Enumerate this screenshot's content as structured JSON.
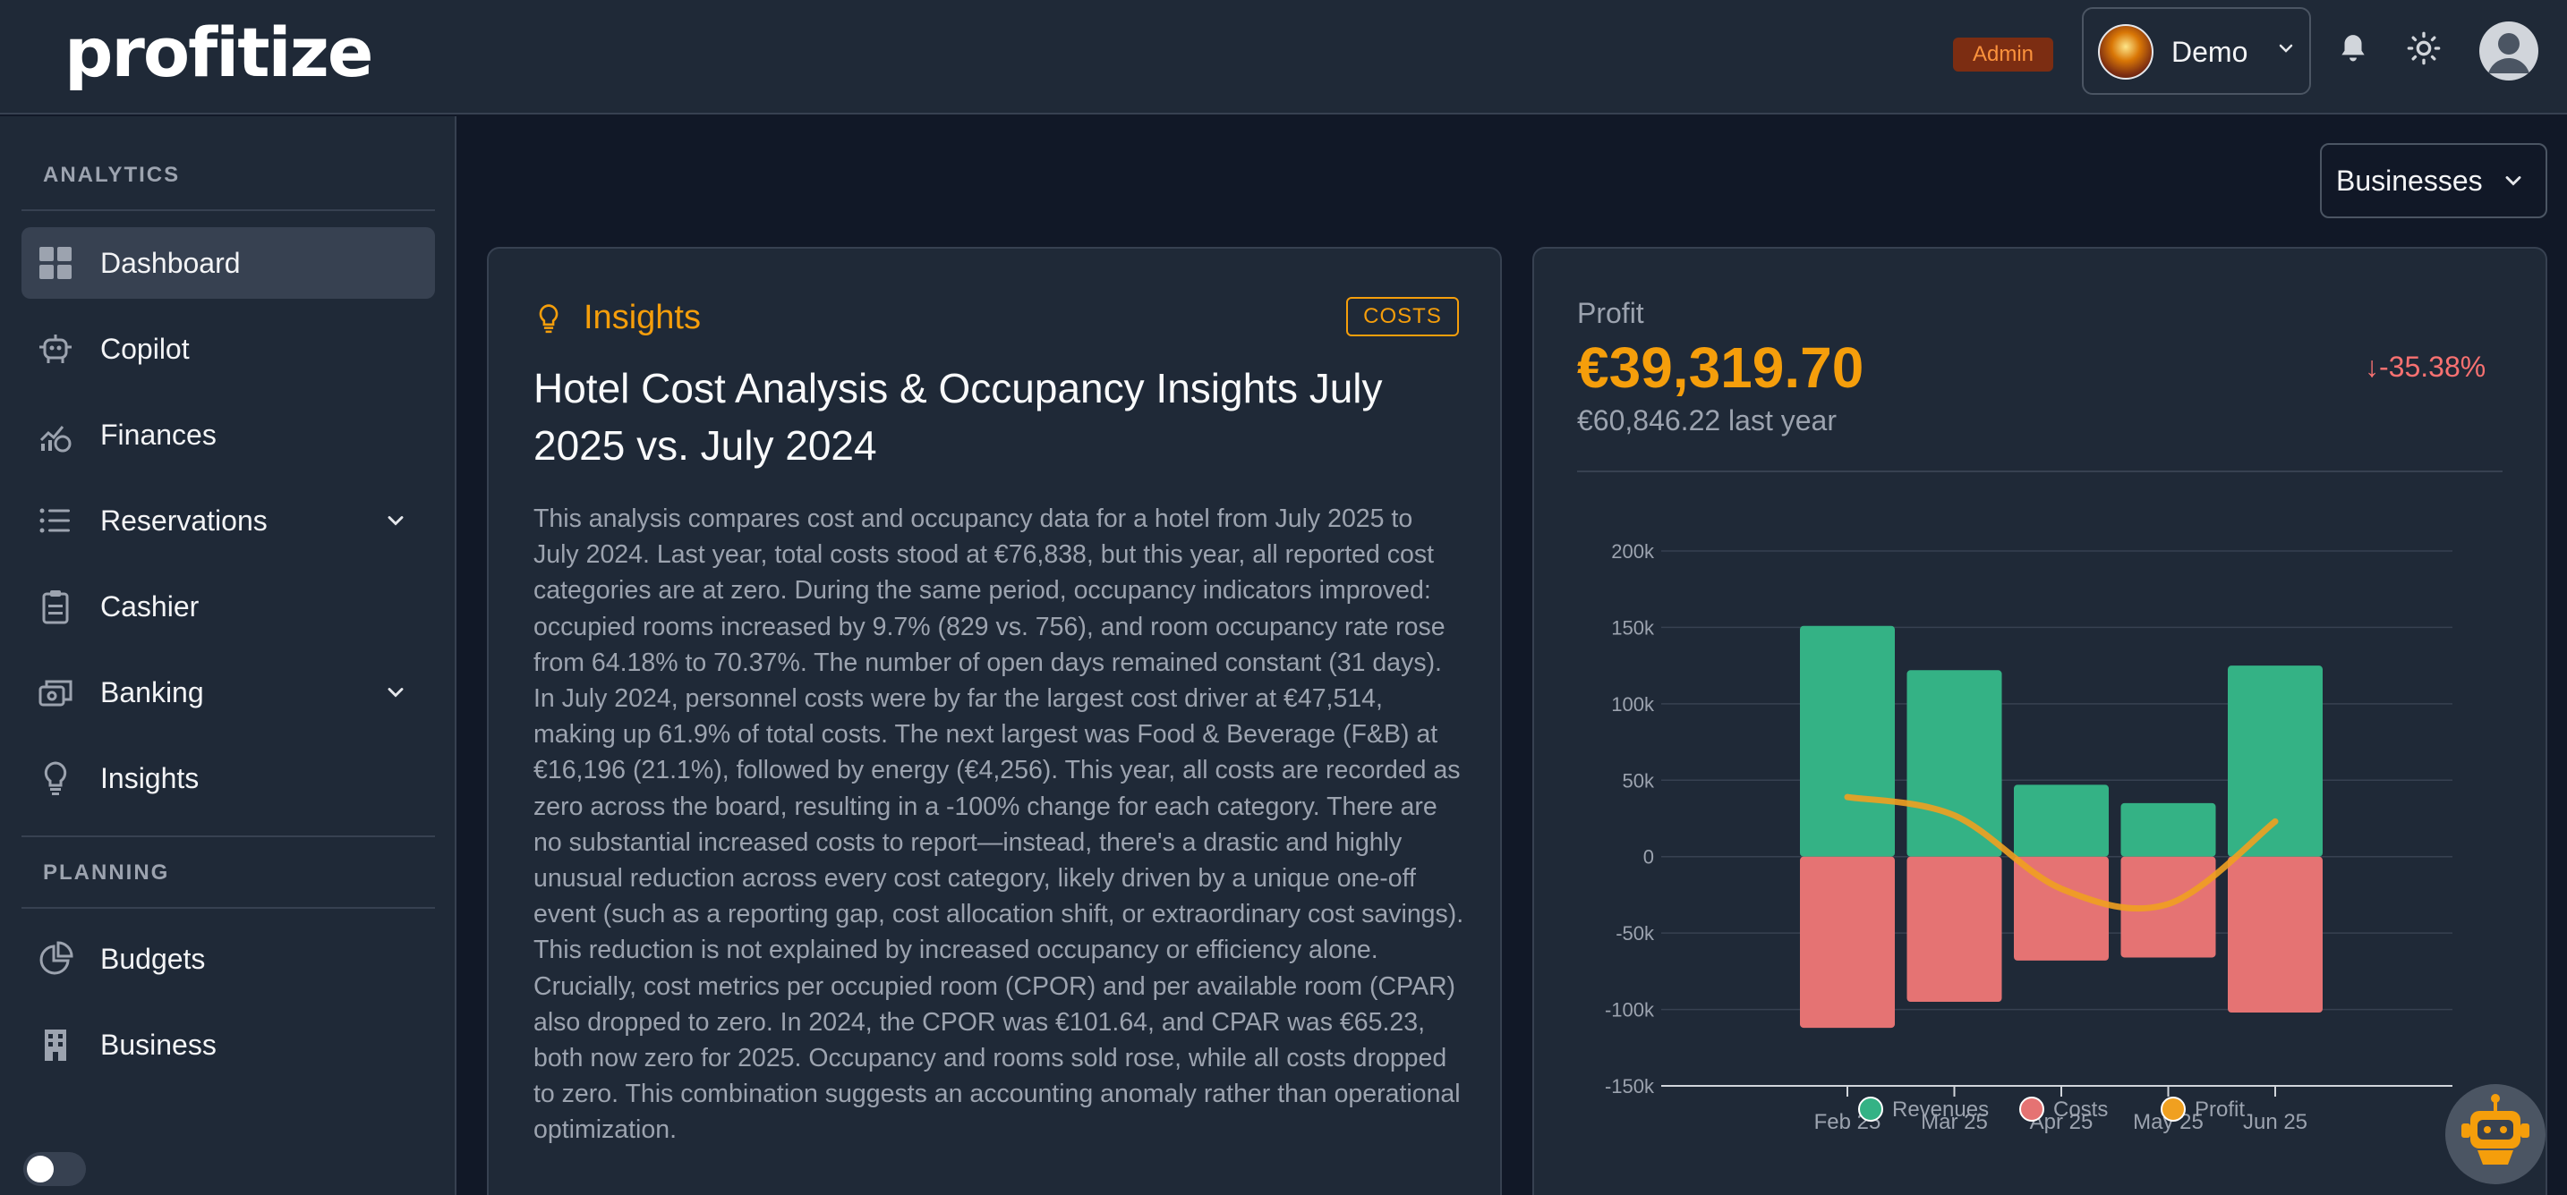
{
  "header": {
    "logo": "profitize",
    "admin_badge": "Admin",
    "account": "Demo",
    "icons": [
      "bell-icon",
      "sun-icon",
      "user-avatar-icon"
    ]
  },
  "sidebar": {
    "analytics_title": "ANALYTICS",
    "planning_title": "PLANNING",
    "items": [
      {
        "label": "Dashboard",
        "icon": "dashboard-icon"
      },
      {
        "label": "Copilot",
        "icon": "robot-icon"
      },
      {
        "label": "Finances",
        "icon": "finances-icon"
      },
      {
        "label": "Reservations",
        "icon": "list-icon"
      },
      {
        "label": "Cashier",
        "icon": "clipboard-icon"
      },
      {
        "label": "Banking",
        "icon": "banking-icon"
      },
      {
        "label": "Insights",
        "icon": "lightbulb-icon"
      },
      {
        "label": "Budgets",
        "icon": "pie-chart-icon"
      },
      {
        "label": "Business",
        "icon": "building-icon"
      }
    ]
  },
  "main": {
    "business_select": "Businesses"
  },
  "insights": {
    "heading": "Insights",
    "tag": "COSTS",
    "title": "Hotel Cost Analysis & Occupancy Insights July 2025 vs. July 2024",
    "body": "This analysis compares cost and occupancy data for a hotel from July 2025 to July 2024. Last year, total costs stood at €76,838, but this year, all reported cost categories are at zero. During the same period, occupancy indicators improved: occupied rooms increased by 9.7% (829 vs. 756), and room occupancy rate rose from 64.18% to 70.37%. The number of open days remained constant (31 days). In July 2024, personnel costs were by far the largest cost driver at €47,514, making up 61.9% of total costs. The next largest was Food & Beverage (F&B) at €16,196 (21.1%), followed by energy (€4,256). This year, all costs are recorded as zero across the board, resulting in a -100% change for each category. There are no substantial increased costs to report—instead, there's a drastic and highly unusual reduction across every cost category, likely driven by a unique one-off event (such as a reporting gap, cost allocation shift, or extraordinary cost savings). This reduction is not explained by increased occupancy or efficiency alone. Crucially, cost metrics per occupied room (CPOR) and per available room (CPAR) also dropped to zero. In 2024, the CPOR was €101.64, and CPAR was €65.23, both now zero for 2025. Occupancy and rooms sold rose, while all costs dropped to zero. This combination suggests an accounting anomaly rather than operational optimization."
  },
  "profit": {
    "label": "Profit",
    "value": "€39,319.70",
    "last_year": "€60,846.22 last year",
    "change": "↓-35.38%"
  },
  "chart_data": {
    "type": "bar",
    "categories": [
      "Feb 25",
      "Mar 25",
      "Apr 25",
      "May 25",
      "Jun 25"
    ],
    "series": [
      {
        "name": "Revenues",
        "type": "bar",
        "color": "#34b285",
        "values": [
          151000,
          122000,
          47000,
          35000,
          125000
        ]
      },
      {
        "name": "Costs",
        "type": "bar",
        "color": "#e57373",
        "values": [
          -112000,
          -95000,
          -68000,
          -66000,
          -102000
        ]
      },
      {
        "name": "Profit",
        "type": "line",
        "color": "#f0a020",
        "values": [
          39000,
          27000,
          -21000,
          -31000,
          23000
        ]
      }
    ],
    "y_ticks": [
      "200k",
      "150k",
      "100k",
      "50k",
      "0",
      "-50k",
      "-100k",
      "-150k"
    ],
    "ylim": [
      -150000,
      200000
    ],
    "grid": true,
    "legend": "bottom"
  }
}
